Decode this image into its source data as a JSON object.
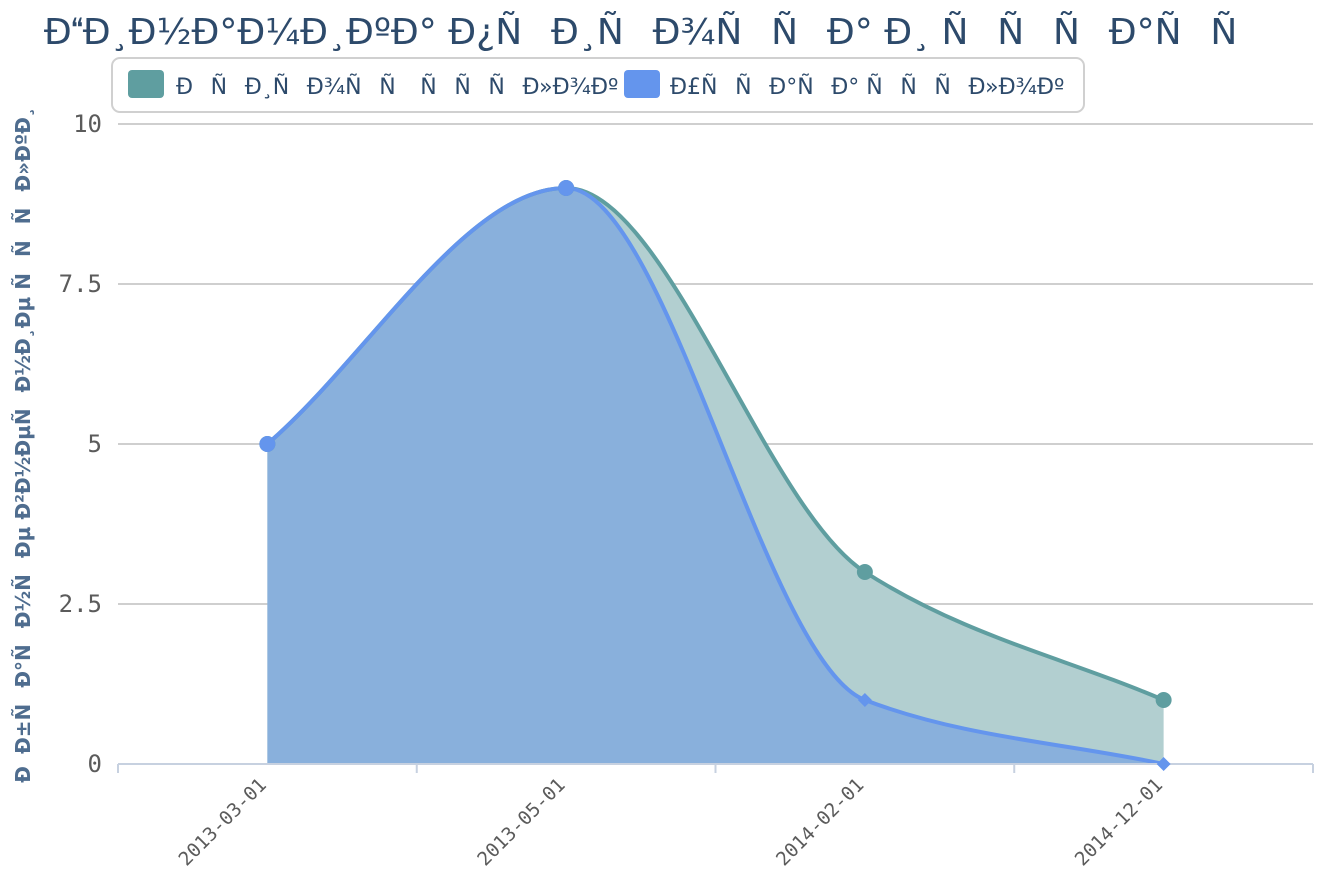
{
  "chart_data": {
    "type": "area",
    "title": "ÐÐ¸Ð½Ð°Ð¼Ð¸ÐºÐ° Ð¿ÑÐ¸ÑÐ¾ÑÑÐ° Ð¸ ÑÑÑÐ°ÑÑ",
    "xlabel": "",
    "ylabel": "ÐÐ±ÑÐ°ÑÐ½ÑÐµ Ð²Ð½ÐµÑÐ½Ð¸Ðµ ÑÑÑÐ»ÐºÐ¸",
    "categories": [
      "2013-03-01",
      "2013-05-01",
      "2014-02-01",
      "2014-12-01"
    ],
    "ylim": [
      0,
      10
    ],
    "yticks": [
      "0",
      "2.5",
      "5",
      "7.5",
      "10"
    ],
    "legend_position": "top",
    "grid": true,
    "series": [
      {
        "name": "ÐÑÐ¸ÑÐ¾ÑÑ ÑÑÑÐ»Ð¾Ðº",
        "values": [
          5,
          9,
          3,
          1
        ],
        "color": "#5f9ea0",
        "fill": "#b2cfd0",
        "marker": "circle"
      },
      {
        "name": "Ð£ÑÑÐ°ÑÐ° ÑÑÑÐ»Ð¾Ðº",
        "values": [
          5,
          9,
          1,
          0
        ],
        "color": "#6495ed",
        "fill": "#89b0dc",
        "marker": "diamond"
      }
    ]
  }
}
